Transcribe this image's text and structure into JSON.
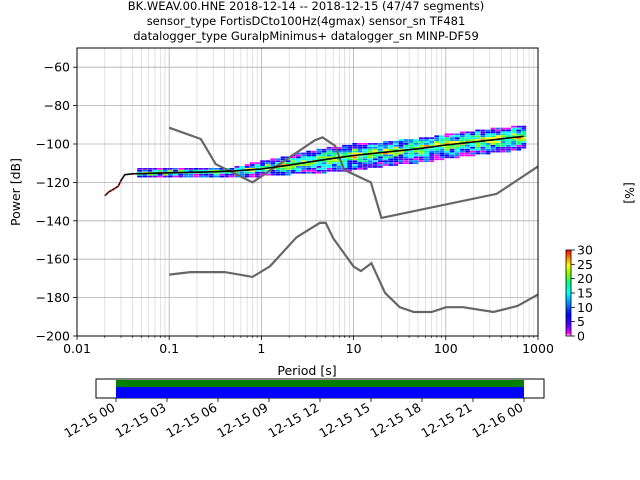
{
  "chart_data": {
    "type": "heatmap",
    "title_lines": [
      "BK.WEAV.00.HNE   2018-12-14 -- 2018-12-15  (47/47 segments)",
      "sensor_type FortisDCto100Hz(4gmax) sensor_sn TF481",
      "datalogger_type GuralpMinimus+ datalogger_sn MINP-DF59"
    ],
    "xlabel": "Period [s]",
    "ylabel": "Power [dB]",
    "xscale": "log",
    "xlim": [
      0.01,
      1000
    ],
    "ylim": [
      -200,
      -50
    ],
    "x_ticks": [
      {
        "value": 0.01,
        "label": "0.01"
      },
      {
        "value": 0.1,
        "label": "0.1"
      },
      {
        "value": 1,
        "label": "1"
      },
      {
        "value": 10,
        "label": "10"
      },
      {
        "value": 100,
        "label": "100"
      },
      {
        "value": 1000,
        "label": "1000"
      }
    ],
    "y_ticks": [
      {
        "value": -60,
        "label": "−60"
      },
      {
        "value": -80,
        "label": "−80"
      },
      {
        "value": -100,
        "label": "−100"
      },
      {
        "value": -120,
        "label": "−120"
      },
      {
        "value": -140,
        "label": "−140"
      },
      {
        "value": -160,
        "label": "−160"
      },
      {
        "value": -180,
        "label": "−180"
      },
      {
        "value": -200,
        "label": "−200"
      }
    ],
    "grid": true,
    "colorbar": {
      "label": "[%]",
      "min": 0,
      "max": 30,
      "ticks": [
        {
          "value": 0,
          "label": "0"
        },
        {
          "value": 5,
          "label": "5"
        },
        {
          "value": 10,
          "label": "10"
        },
        {
          "value": 15,
          "label": "15"
        },
        {
          "value": 20,
          "label": "20"
        },
        {
          "value": 25,
          "label": "25"
        },
        {
          "value": 30,
          "label": "30"
        }
      ],
      "colors": [
        "#ffffff",
        "#ff00ff",
        "#5000ff",
        "#0000ff",
        "#0080ff",
        "#00ffff",
        "#00ff80",
        "#80ff00",
        "#ffff00",
        "#ff8000",
        "#ff0000"
      ]
    },
    "noise_models": {
      "high_noise_model": [
        [
          0.1,
          -91.5
        ],
        [
          0.22,
          -97.4
        ],
        [
          0.32,
          -110.5
        ],
        [
          0.8,
          -120
        ],
        [
          3.8,
          -98
        ],
        [
          4.6,
          -96.5
        ],
        [
          6.3,
          -101
        ],
        [
          7.9,
          -113.5
        ],
        [
          15.4,
          -120
        ],
        [
          20,
          -138.5
        ],
        [
          354.8,
          -126
        ],
        [
          10000,
          -80
        ]
      ],
      "low_noise_model": [
        [
          0.1,
          -168
        ],
        [
          0.17,
          -166.7
        ],
        [
          0.4,
          -166.7
        ],
        [
          0.8,
          -169.2
        ],
        [
          1.24,
          -163.7
        ],
        [
          2.4,
          -148.6
        ],
        [
          4.3,
          -141.1
        ],
        [
          5,
          -141.1
        ],
        [
          6,
          -149
        ],
        [
          10,
          -163.8
        ],
        [
          12,
          -166.2
        ],
        [
          15.6,
          -162.1
        ],
        [
          21.9,
          -177.5
        ],
        [
          31.6,
          -185
        ],
        [
          45,
          -187.5
        ],
        [
          70,
          -187.5
        ],
        [
          101,
          -185
        ],
        [
          154,
          -185
        ],
        [
          328,
          -187.5
        ],
        [
          600,
          -184.4
        ],
        [
          10000,
          -151.5
        ]
      ]
    },
    "mean_curve": [
      [
        0.02,
        -127
      ],
      [
        0.022,
        -125
      ],
      [
        0.026,
        -123
      ],
      [
        0.028,
        -122
      ],
      [
        0.03,
        -119
      ],
      [
        0.033,
        -116
      ],
      [
        0.04,
        -115.5
      ],
      [
        0.1,
        -115
      ],
      [
        0.3,
        -114.5
      ],
      [
        0.5,
        -114
      ],
      [
        1,
        -113
      ],
      [
        2,
        -111
      ],
      [
        5,
        -108
      ],
      [
        10,
        -106
      ],
      [
        20,
        -104.5
      ],
      [
        50,
        -102.5
      ],
      [
        100,
        -100.5
      ],
      [
        300,
        -98
      ],
      [
        700,
        -96
      ]
    ],
    "psd_band": {
      "upper": [
        [
          0.05,
          -113
        ],
        [
          0.2,
          -114
        ],
        [
          0.5,
          -113
        ],
        [
          1,
          -110
        ],
        [
          2,
          -107
        ],
        [
          5,
          -103
        ],
        [
          10,
          -101
        ],
        [
          20,
          -100
        ],
        [
          50,
          -98
        ],
        [
          100,
          -96
        ],
        [
          200,
          -94
        ],
        [
          500,
          -92
        ],
        [
          700,
          -91
        ]
      ],
      "lower": [
        [
          0.05,
          -117
        ],
        [
          0.2,
          -117
        ],
        [
          0.5,
          -117
        ],
        [
          1,
          -116
        ],
        [
          2,
          -115
        ],
        [
          5,
          -114
        ],
        [
          10,
          -113
        ],
        [
          20,
          -111
        ],
        [
          50,
          -109
        ],
        [
          100,
          -107
        ],
        [
          200,
          -105
        ],
        [
          500,
          -103
        ],
        [
          700,
          -102
        ]
      ]
    },
    "time_axis": {
      "ticks": [
        "12-15 00",
        "12-15 03",
        "12-15 06",
        "12-15 09",
        "12-15 12",
        "12-15 15",
        "12-15 18",
        "12-15 21",
        "12-16 00"
      ],
      "coverage_colors": [
        "#008000",
        "#0000ff"
      ]
    }
  }
}
